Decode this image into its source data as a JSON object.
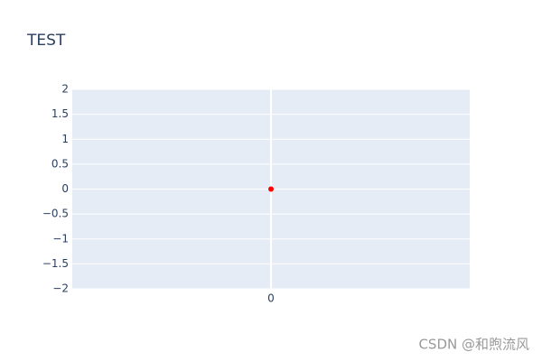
{
  "chart_data": {
    "type": "scatter",
    "title": "TEST",
    "x": [
      0
    ],
    "series": [
      {
        "color": "#ff0000",
        "values": [
          0
        ]
      }
    ],
    "xlim": [
      -1,
      1
    ],
    "xticks": [
      0
    ],
    "ylim": [
      -2,
      2
    ],
    "yticks": [
      {
        "value": -2,
        "label": "−2"
      },
      {
        "value": -1.5,
        "label": "−1.5"
      },
      {
        "value": -1,
        "label": "−1"
      },
      {
        "value": -0.5,
        "label": "−0.5"
      },
      0,
      0.5,
      1,
      1.5,
      2
    ],
    "grid": true,
    "background": "#e5ecf6"
  },
  "watermark": "CSDN @和煦流风"
}
